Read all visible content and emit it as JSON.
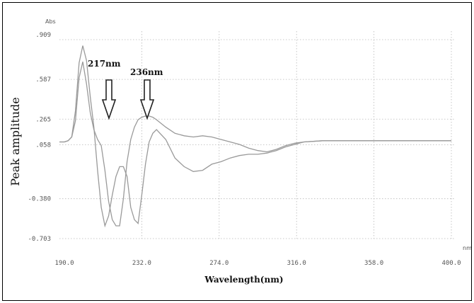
{
  "chart_data": {
    "type": "line",
    "xlabel": "Wavelength(nm)",
    "ylabel": "Peak amplitude",
    "y_unit": "Abs",
    "x_unit": "nm",
    "xlim": [
      190.0,
      400.0
    ],
    "ylim": [
      -0.703,
      0.909
    ],
    "x_ticks": [
      "190.0",
      "232.0",
      "274.0",
      "316.0",
      "358.0",
      "400.0"
    ],
    "y_ticks": [
      ".909",
      ".587",
      ".265",
      ".058",
      "-0.380",
      "-0.703"
    ],
    "grid": true,
    "annotations": [
      {
        "label": "217nm",
        "x": 217
      },
      {
        "label": "236nm",
        "x": 236
      }
    ],
    "series": [
      {
        "x": [
          190,
          192,
          194,
          196,
          198,
          200,
          202,
          204,
          206,
          208,
          210,
          212,
          214,
          216,
          218,
          220,
          222,
          224,
          226,
          228,
          230,
          232,
          234,
          236,
          238,
          240,
          245,
          250,
          255,
          260,
          265,
          270,
          275,
          280,
          285,
          290,
          295,
          300,
          305,
          310,
          315,
          320,
          330,
          340,
          350,
          360,
          370,
          380,
          390,
          400
        ],
        "values": [
          0.08,
          0.09,
          0.12,
          0.25,
          0.6,
          0.73,
          0.55,
          0.32,
          0.18,
          0.1,
          0.05,
          -0.15,
          -0.4,
          -0.55,
          -0.6,
          -0.6,
          -0.38,
          -0.08,
          0.1,
          0.2,
          0.26,
          0.28,
          0.29,
          0.29,
          0.28,
          0.26,
          0.2,
          0.15,
          0.13,
          0.12,
          0.13,
          0.12,
          0.1,
          0.08,
          0.06,
          0.03,
          0.01,
          0.0,
          0.02,
          0.05,
          0.07,
          0.08,
          0.09,
          0.09,
          0.09,
          0.09,
          0.09,
          0.09,
          0.09,
          0.09
        ]
      },
      {
        "x": [
          190,
          192,
          194,
          196,
          198,
          200,
          202,
          204,
          206,
          208,
          210,
          212,
          214,
          216,
          218,
          220,
          222,
          224,
          226,
          228,
          230,
          232,
          234,
          236,
          238,
          240,
          245,
          250,
          255,
          260,
          265,
          270,
          275,
          280,
          285,
          290,
          295,
          300,
          305,
          310,
          315,
          320,
          330,
          340,
          350,
          360,
          370,
          380,
          390,
          400
        ],
        "values": [
          0.08,
          0.09,
          0.12,
          0.33,
          0.72,
          0.86,
          0.74,
          0.45,
          0.2,
          -0.15,
          -0.45,
          -0.6,
          -0.52,
          -0.35,
          -0.2,
          -0.12,
          -0.12,
          -0.2,
          -0.45,
          -0.55,
          -0.58,
          -0.35,
          -0.1,
          0.08,
          0.15,
          0.18,
          0.1,
          -0.05,
          -0.12,
          -0.16,
          -0.15,
          -0.1,
          -0.08,
          -0.05,
          -0.03,
          -0.02,
          -0.02,
          -0.01,
          0.01,
          0.04,
          0.06,
          0.08,
          0.09,
          0.09,
          0.09,
          0.09,
          0.09,
          0.09,
          0.09,
          0.09
        ]
      }
    ]
  }
}
